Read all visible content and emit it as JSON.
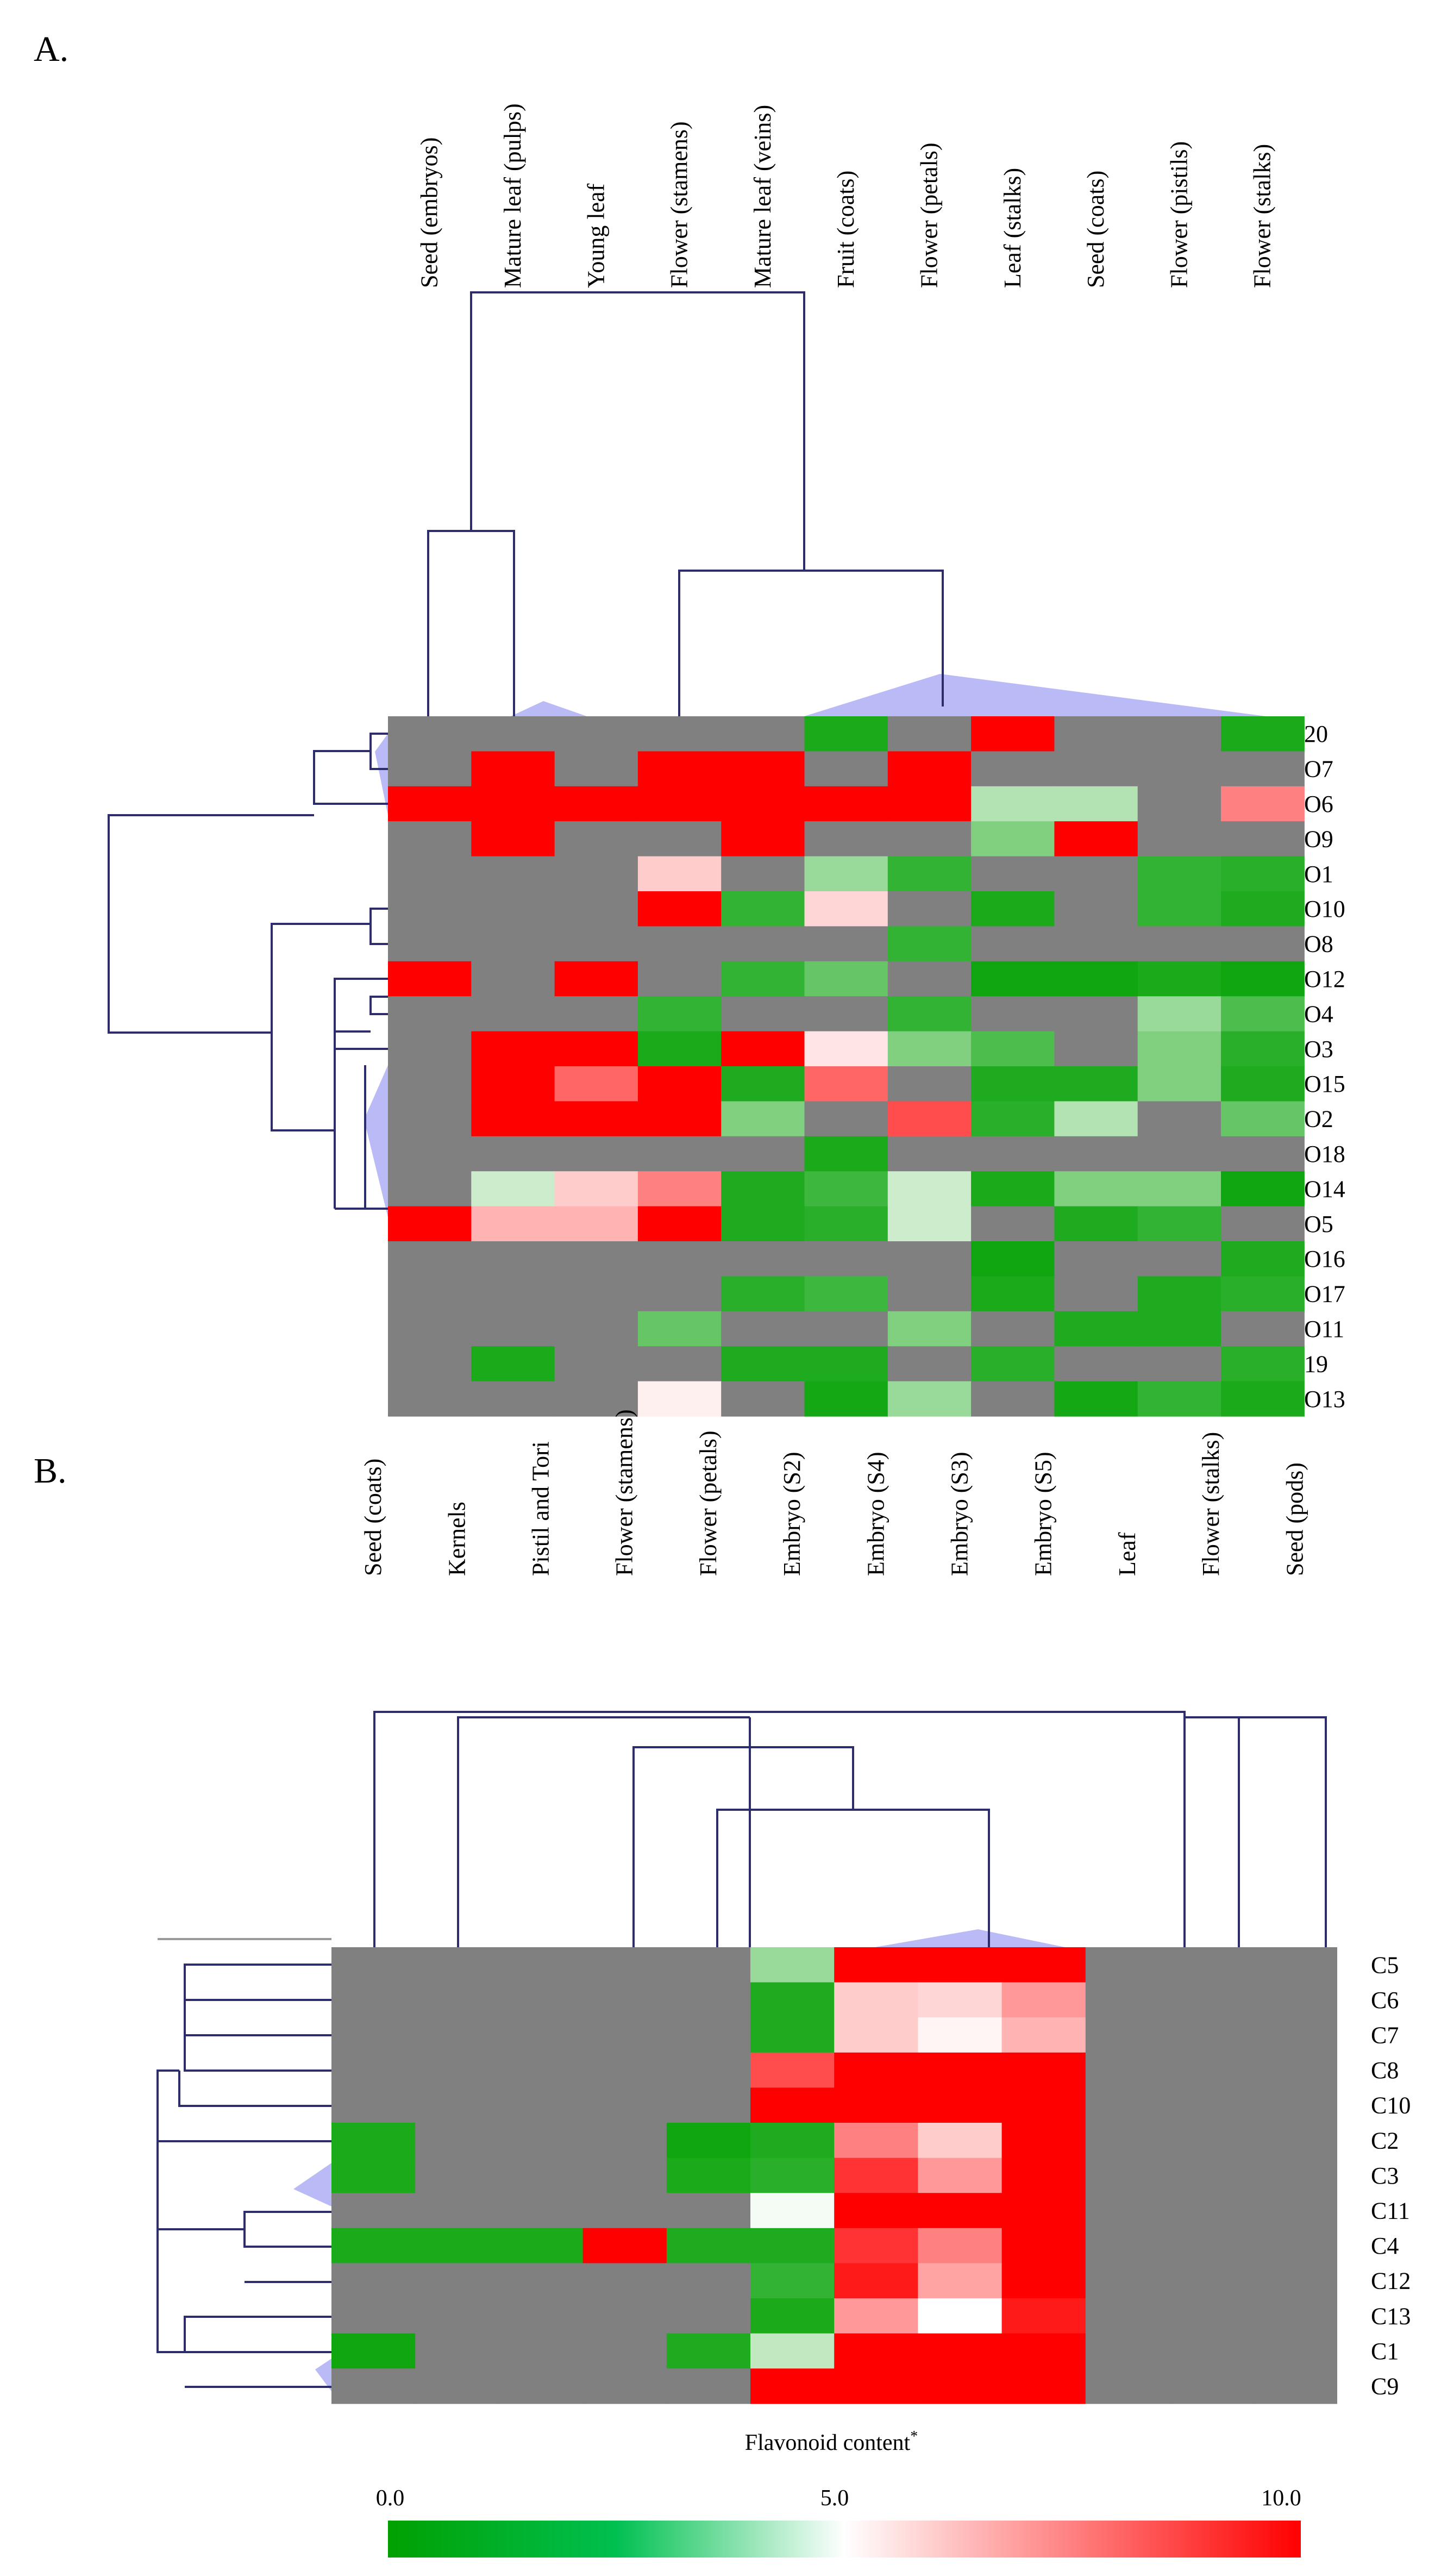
{
  "legend": {
    "title": "Flavonoid content",
    "title_mark": "*",
    "ticks": [
      "0.0",
      "5.0",
      "10.0"
    ],
    "colors": {
      "low": "#00a000",
      "mid": "#ffffff",
      "high": "#ff0000",
      "na": "#808080",
      "tree": "#2d2d6e",
      "wedge": "#a9a9f5"
    }
  },
  "chart_data": [
    {
      "type": "heatmap",
      "panel_label": "A.",
      "columns": [
        "Seed (embryos)",
        "Mature leaf (pulps)",
        "Young leaf",
        "Flower (stamens)",
        "Mature leaf (veins)",
        "Fruit (coats)",
        "Flower (petals)",
        "Leaf (stalks)",
        "Seed (coats)",
        "Flower (pistils)",
        "Flower (stalks)"
      ],
      "rows": [
        "20",
        "O7",
        "O6",
        "O9",
        "O1",
        "O10",
        "O8",
        "O12",
        "O4",
        "O3",
        "O15",
        "O2",
        "O18",
        "O14",
        "O5",
        "O16",
        "O17",
        "O11",
        "19",
        "O13"
      ],
      "value_range": [
        0,
        10
      ],
      "missing_value": null,
      "values": [
        [
          null,
          null,
          null,
          null,
          null,
          0.5,
          null,
          10,
          null,
          null,
          0.5
        ],
        [
          null,
          10,
          null,
          10,
          10,
          null,
          10,
          null,
          null,
          null,
          null
        ],
        [
          10,
          10,
          10,
          10,
          10,
          10,
          10,
          3.5,
          3.5,
          null,
          7.5
        ],
        [
          null,
          10,
          null,
          null,
          10,
          null,
          null,
          2.5,
          10,
          null,
          null
        ],
        [
          null,
          null,
          null,
          6,
          null,
          3,
          1,
          null,
          null,
          1,
          0.8
        ],
        [
          null,
          null,
          null,
          10,
          1,
          5.8,
          null,
          0.5,
          null,
          1,
          0.6
        ],
        [
          null,
          null,
          null,
          null,
          null,
          null,
          1,
          null,
          null,
          null,
          null
        ],
        [
          10,
          null,
          10,
          null,
          1,
          2,
          null,
          0.3,
          0.3,
          0.5,
          0.3
        ],
        [
          null,
          null,
          null,
          1,
          null,
          null,
          1,
          null,
          null,
          3,
          1.5
        ],
        [
          null,
          10,
          10,
          0.5,
          10,
          5.5,
          2.5,
          1.5,
          null,
          2.5,
          0.8
        ],
        [
          null,
          10,
          8,
          10,
          0.6,
          8,
          null,
          0.6,
          0.6,
          2.5,
          0.6
        ],
        [
          null,
          10,
          10,
          10,
          2.5,
          null,
          8.5,
          0.8,
          3.5,
          null,
          2
        ],
        [
          null,
          null,
          null,
          null,
          null,
          0.5,
          null,
          null,
          null,
          null,
          null
        ],
        [
          null,
          4,
          6,
          7.5,
          0.6,
          1.2,
          4,
          0.5,
          2.5,
          2.5,
          0.3
        ],
        [
          10,
          6.5,
          6.5,
          10,
          0.6,
          0.8,
          4,
          null,
          0.6,
          1,
          null
        ],
        [
          null,
          null,
          null,
          null,
          null,
          null,
          null,
          0.3,
          null,
          null,
          0.6
        ],
        [
          null,
          null,
          null,
          null,
          0.8,
          1.2,
          null,
          0.5,
          null,
          0.6,
          0.8
        ],
        [
          null,
          null,
          null,
          2,
          null,
          null,
          2.5,
          null,
          0.6,
          0.6,
          null
        ],
        [
          null,
          0.5,
          null,
          null,
          0.6,
          0.6,
          null,
          0.8,
          null,
          null,
          0.8
        ],
        [
          null,
          null,
          null,
          5.3,
          null,
          0.4,
          3,
          null,
          0.4,
          1,
          0.5
        ]
      ]
    },
    {
      "type": "heatmap",
      "panel_label": "B.",
      "columns": [
        "Seed (coats)",
        "Kernels",
        "Pistil and Tori",
        "Flower (stamens)",
        "Flower (petals)",
        "Embryo (S2)",
        "Embryo (S4)",
        "Embryo (S3)",
        "Embryo (S5)",
        "Leaf",
        "Flower (stalks)",
        "Seed (pods)"
      ],
      "rows": [
        "C5",
        "C6",
        "C7",
        "C8",
        "C10",
        "C2",
        "C3",
        "C11",
        "C4",
        "C12",
        "C13",
        "C1",
        "C9"
      ],
      "value_range": [
        0,
        10
      ],
      "missing_value": null,
      "values": [
        [
          null,
          null,
          null,
          null,
          null,
          3,
          10,
          10,
          10,
          null,
          null,
          null
        ],
        [
          null,
          null,
          null,
          null,
          null,
          0.6,
          6,
          5.8,
          7,
          null,
          null,
          null
        ],
        [
          null,
          null,
          null,
          null,
          null,
          0.6,
          6,
          5.2,
          6.5,
          null,
          null,
          null
        ],
        [
          null,
          null,
          null,
          null,
          null,
          8.5,
          10,
          10,
          10,
          null,
          null,
          null
        ],
        [
          null,
          null,
          null,
          null,
          null,
          10,
          10,
          10,
          10,
          null,
          null,
          null
        ],
        [
          0.5,
          null,
          null,
          null,
          0.3,
          0.6,
          7.5,
          6,
          10,
          null,
          null,
          null
        ],
        [
          0.5,
          null,
          null,
          null,
          0.5,
          0.8,
          9,
          7,
          10,
          null,
          null,
          null
        ],
        [
          null,
          null,
          null,
          null,
          null,
          4.8,
          10,
          10,
          10,
          null,
          null,
          null
        ],
        [
          0.5,
          0.5,
          0.5,
          10,
          0.6,
          0.6,
          9,
          7.5,
          10,
          null,
          null,
          null
        ],
        [
          null,
          null,
          null,
          null,
          null,
          1,
          9.5,
          6.8,
          10,
          null,
          null,
          null
        ],
        [
          null,
          null,
          null,
          null,
          null,
          0.5,
          7,
          5,
          9.5,
          null,
          null,
          null
        ],
        [
          0.3,
          null,
          null,
          null,
          0.6,
          3.8,
          10,
          10,
          10,
          null,
          null,
          null
        ],
        [
          null,
          null,
          null,
          null,
          null,
          10,
          10,
          10,
          10,
          null,
          null,
          null
        ]
      ]
    }
  ]
}
